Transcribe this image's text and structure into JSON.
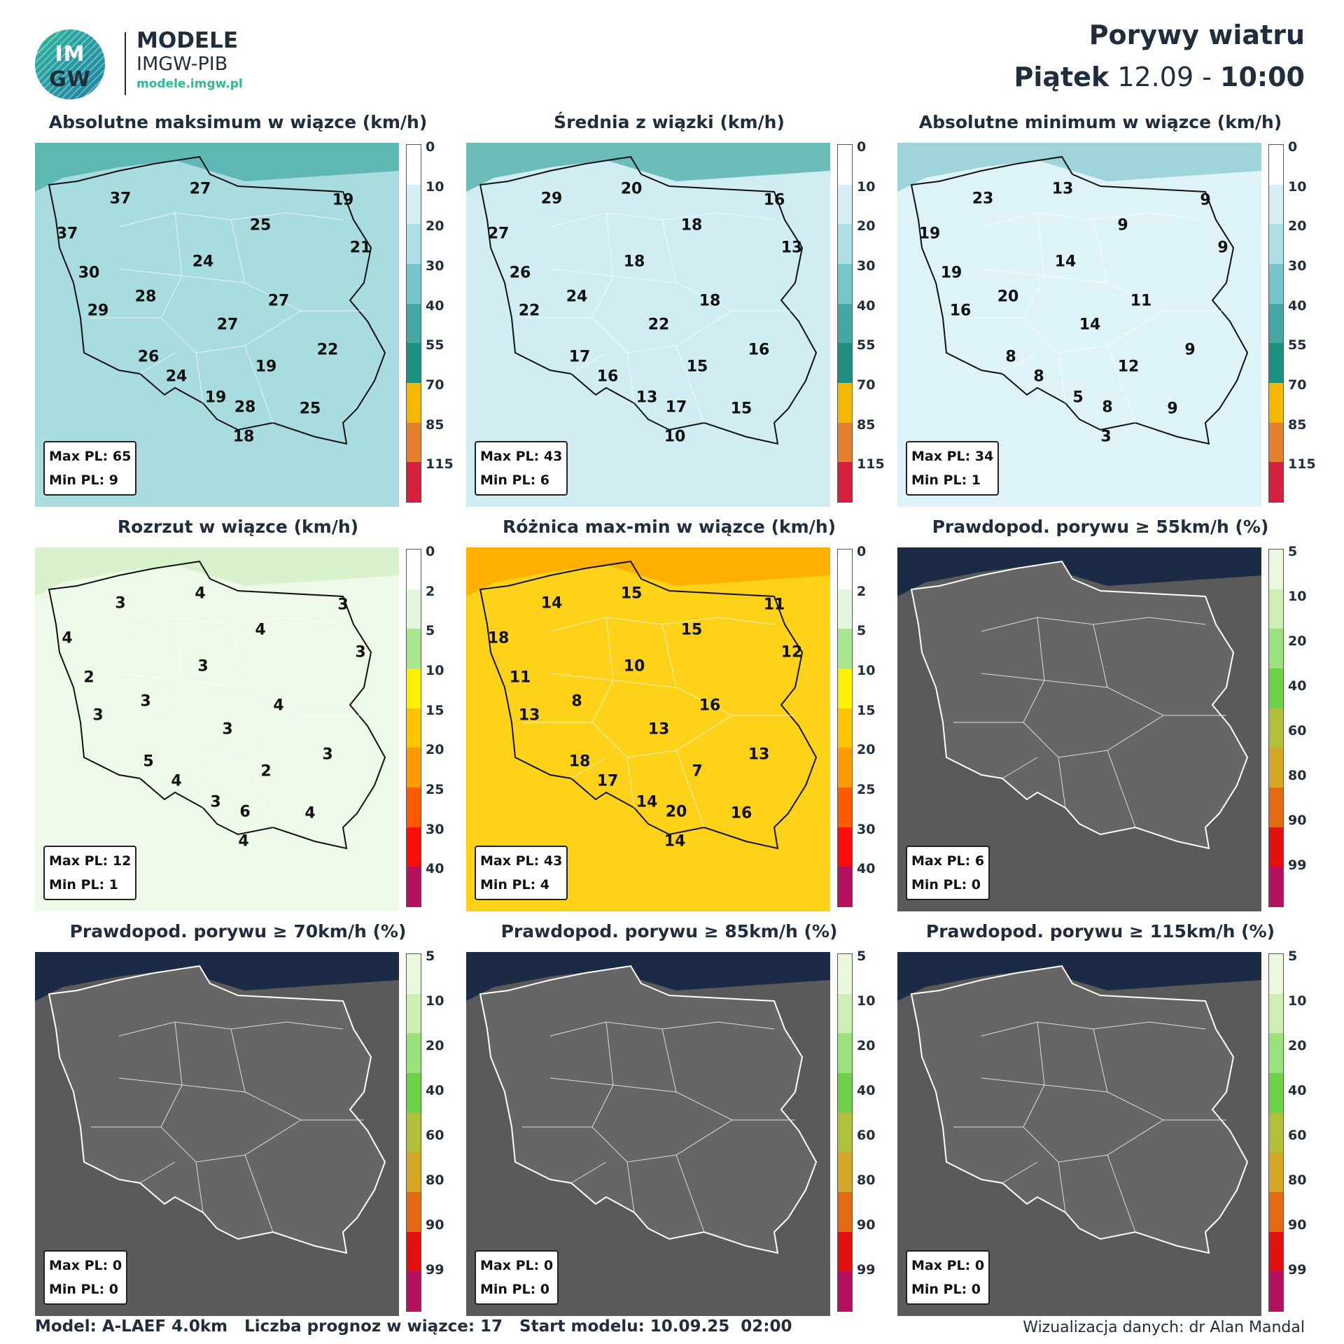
{
  "header": {
    "logo_top": "IM",
    "logo_bottom": "GW",
    "brand": "MODELE",
    "org": "IMGW-PIB",
    "site": "modele.imgw.pl",
    "title": "Porywy wiatru",
    "day": "Piątek",
    "date": "12.09",
    "sep": "-",
    "time": "10:00"
  },
  "colors": {
    "wind": [
      "#ffffff",
      "#d5eef6",
      "#aedfe9",
      "#78c6cd",
      "#45a8a5",
      "#1c8f7e",
      "#f5b700",
      "#e4802e",
      "#d4203a"
    ],
    "spread": [
      "#ffffff",
      "#e4f7df",
      "#a9e58f",
      "#ffef00",
      "#ffc400",
      "#ff9a00",
      "#ff5a00",
      "#ff0c0c",
      "#b7105e"
    ],
    "prob": [
      "#eaf8dd",
      "#cdeeb4",
      "#9be27e",
      "#6fd04a",
      "#b0c03a",
      "#d7a828",
      "#e46a12",
      "#e31010",
      "#b7105e"
    ]
  },
  "panels": [
    {
      "title": "Absolutne maksimum w wiązce (km/h)",
      "bg": "#a9dcdf",
      "scale": "wind",
      "ticks": [
        "0",
        "10",
        "20",
        "30",
        "40",
        "55",
        "70",
        "85",
        "115"
      ],
      "max": "Max PL: 65",
      "min": "Min PL: 9",
      "values": [
        "27",
        "37",
        "19",
        "37",
        "25",
        "21",
        "24",
        "30",
        "28",
        "27",
        "29",
        "27",
        "22",
        "26",
        "19",
        "24",
        "19",
        "28",
        "25",
        "18"
      ]
    },
    {
      "title": "Średnia z wiązki (km/h)",
      "bg": "#cfedf3",
      "scale": "wind",
      "ticks": [
        "0",
        "10",
        "20",
        "30",
        "40",
        "55",
        "70",
        "85",
        "115"
      ],
      "max": "Max PL: 43",
      "min": "Min PL: 6",
      "values": [
        "20",
        "29",
        "16",
        "27",
        "18",
        "13",
        "18",
        "26",
        "24",
        "18",
        "22",
        "22",
        "16",
        "17",
        "15",
        "16",
        "13",
        "17",
        "15",
        "10"
      ]
    },
    {
      "title": "Absolutne minimum w wiązce (km/h)",
      "bg": "#def3f8",
      "scale": "wind",
      "ticks": [
        "0",
        "10",
        "20",
        "30",
        "40",
        "55",
        "70",
        "85",
        "115"
      ],
      "max": "Max PL: 34",
      "min": "Min PL: 1",
      "values": [
        "13",
        "23",
        "9",
        "19",
        "9",
        "9",
        "14",
        "19",
        "20",
        "11",
        "16",
        "14",
        "9",
        "8",
        "12",
        "8",
        "5",
        "8",
        "9",
        "3"
      ]
    },
    {
      "title": "Rozrzut w wiązce (km/h)",
      "bg": "#eef9e9",
      "scale": "spread",
      "ticks": [
        "0",
        "2",
        "5",
        "10",
        "15",
        "20",
        "25",
        "30",
        "40"
      ],
      "max": "Max PL: 12",
      "min": "Min PL: 1",
      "values": [
        "4",
        "3",
        "3",
        "4",
        "4",
        "3",
        "3",
        "2",
        "3",
        "4",
        "3",
        "3",
        "3",
        "5",
        "2",
        "4",
        "3",
        "6",
        "4",
        "4"
      ]
    },
    {
      "title": "Różnica max-min w wiązce (km/h)",
      "bg": "#ffd21a",
      "scale": "spread",
      "ticks": [
        "0",
        "2",
        "5",
        "10",
        "15",
        "20",
        "25",
        "30",
        "40"
      ],
      "max": "Max PL: 43",
      "min": "Min PL: 4",
      "values": [
        "15",
        "14",
        "11",
        "18",
        "15",
        "12",
        "10",
        "11",
        "8",
        "16",
        "13",
        "13",
        "13",
        "18",
        "7",
        "17",
        "14",
        "20",
        "16",
        "14"
      ]
    },
    {
      "title": "Prawdopod. porywu ≥ 55km/h (%)",
      "bg": "#5a5a5a",
      "scale": "prob",
      "ticks": [
        "5",
        "10",
        "20",
        "40",
        "60",
        "80",
        "90",
        "99"
      ],
      "max": "Max PL: 6",
      "min": "Min PL: 0",
      "values": []
    },
    {
      "title": "Prawdopod. porywu ≥ 70km/h (%)",
      "bg": "#5a5a5a",
      "scale": "prob",
      "ticks": [
        "5",
        "10",
        "20",
        "40",
        "60",
        "80",
        "90",
        "99"
      ],
      "max": "Max PL: 0",
      "min": "Min PL: 0",
      "values": []
    },
    {
      "title": "Prawdopod. porywu ≥ 85km/h (%)",
      "bg": "#5a5a5a",
      "scale": "prob",
      "ticks": [
        "5",
        "10",
        "20",
        "40",
        "60",
        "80",
        "90",
        "99"
      ],
      "max": "Max PL: 0",
      "min": "Min PL: 0",
      "values": []
    },
    {
      "title": "Prawdopod. porywu ≥ 115km/h (%)",
      "bg": "#5a5a5a",
      "scale": "prob",
      "ticks": [
        "5",
        "10",
        "20",
        "40",
        "60",
        "80",
        "90",
        "99"
      ],
      "max": "Max PL: 0",
      "min": "Min PL: 0",
      "values": []
    }
  ],
  "footer": {
    "model": "Model: A-LAEF 4.0km   Liczba prognoz w wiązce: 17   Start modelu: 10.09.25  02:00",
    "credit": "Wizualizacja danych: dr Alan Mandal"
  }
}
